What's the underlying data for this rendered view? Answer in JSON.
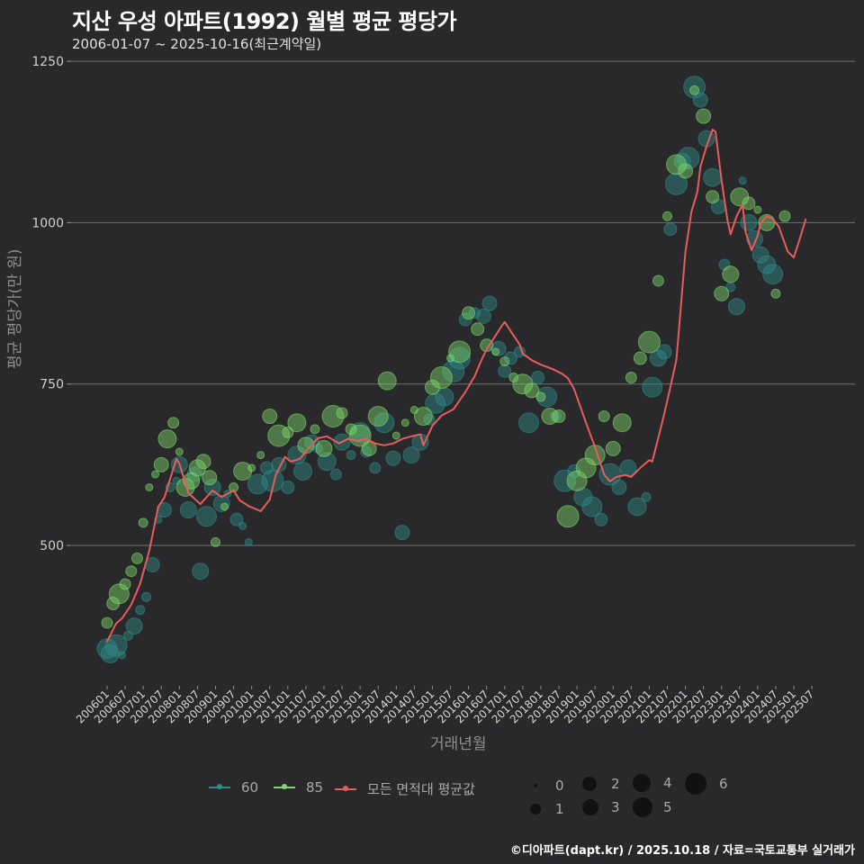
{
  "header": {
    "title": "지산 우성 아파트(1992) 월별 평균 평당가",
    "subtitle": "2006-01-07 ~ 2025-10-16(최근계약일)"
  },
  "axes": {
    "ylabel": "평균 평당가(만 원)",
    "xlabel": "거래년월"
  },
  "legend": {
    "series": [
      {
        "label": "60",
        "color": "#2f8a8a"
      },
      {
        "label": "85",
        "color": "#7ed86a"
      },
      {
        "label": "모든 면적대 평균값",
        "color": "#e85c5c"
      }
    ],
    "sizes": [
      {
        "label": "0",
        "r": 2
      },
      {
        "label": "1",
        "r": 6
      },
      {
        "label": "2",
        "r": 8
      },
      {
        "label": "3",
        "r": 10
      },
      {
        "label": "4",
        "r": 11
      },
      {
        "label": "5",
        "r": 12
      },
      {
        "label": "6",
        "r": 12.5
      }
    ]
  },
  "caption": "©디아파트(dapt.kr) / 2025.10.18 / 자료=국토교통부 실거래가",
  "chart_data": {
    "type": "scatter",
    "title": "지산 우성 아파트(1992) 월별 평균 평당가",
    "subtitle": "2006-01-07 ~ 2025-10-16(최근계약일)",
    "xlabel": "거래년월",
    "ylabel": "평균 평당가(만 원)",
    "ylim": [
      300,
      1250
    ],
    "yticks": [
      500,
      750,
      1000,
      1250
    ],
    "grid": true,
    "legend_position": "bottom",
    "xticks": [
      "200601",
      "200607",
      "200701",
      "200707",
      "200801",
      "200807",
      "200901",
      "200907",
      "201001",
      "201007",
      "201101",
      "201107",
      "201201",
      "201207",
      "201301",
      "201307",
      "201401",
      "201407",
      "201501",
      "201507",
      "201601",
      "201607",
      "201701",
      "201707",
      "201801",
      "201807",
      "201901",
      "201907",
      "202001",
      "202007",
      "202101",
      "202107",
      "202201",
      "202207",
      "202301",
      "202307",
      "202401",
      "202407",
      "202501",
      "202507"
    ],
    "series": [
      {
        "name": "모든 면적대 평균값",
        "type": "line",
        "color": "#e85c5c",
        "points": [
          [
            "200601",
            351
          ],
          [
            "200604",
            379
          ],
          [
            "200606",
            387
          ],
          [
            "200609",
            408
          ],
          [
            "200612",
            441
          ],
          [
            "200703",
            492
          ],
          [
            "200706",
            560
          ],
          [
            "200708",
            574
          ],
          [
            "200712",
            634
          ],
          [
            "200801",
            627
          ],
          [
            "200804",
            581
          ],
          [
            "200808",
            564
          ],
          [
            "200812",
            585
          ],
          [
            "200903",
            575
          ],
          [
            "200907",
            585
          ],
          [
            "200909",
            570
          ],
          [
            "200912",
            561
          ],
          [
            "201004",
            553
          ],
          [
            "201007",
            571
          ],
          [
            "201009",
            609
          ],
          [
            "201012",
            637
          ],
          [
            "201102",
            630
          ],
          [
            "201105",
            634
          ],
          [
            "201108",
            651
          ],
          [
            "201111",
            666
          ],
          [
            "201202",
            669
          ],
          [
            "201206",
            658
          ],
          [
            "201209",
            665
          ],
          [
            "201212",
            662
          ],
          [
            "201303",
            665
          ],
          [
            "201306",
            658
          ],
          [
            "201309",
            655
          ],
          [
            "201312",
            658
          ],
          [
            "201403",
            665
          ],
          [
            "201406",
            669
          ],
          [
            "201409",
            672
          ],
          [
            "201410",
            655
          ],
          [
            "201501",
            685
          ],
          [
            "201504",
            701
          ],
          [
            "201508",
            711
          ],
          [
            "201512",
            738
          ],
          [
            "201603",
            762
          ],
          [
            "201605",
            784
          ],
          [
            "201607",
            804
          ],
          [
            "201609",
            818
          ],
          [
            "201612",
            840
          ],
          [
            "201701",
            846
          ],
          [
            "201703",
            832
          ],
          [
            "201706",
            811
          ],
          [
            "201707",
            797
          ],
          [
            "201710",
            787
          ],
          [
            "201801",
            780
          ],
          [
            "201805",
            773
          ],
          [
            "201808",
            766
          ],
          [
            "201810",
            759
          ],
          [
            "201812",
            743
          ],
          [
            "201904",
            690
          ],
          [
            "201907",
            652
          ],
          [
            "201910",
            610
          ],
          [
            "201912",
            599
          ],
          [
            "202002",
            606
          ],
          [
            "202005",
            609
          ],
          [
            "202007",
            606
          ],
          [
            "202010",
            620
          ],
          [
            "202101",
            632
          ],
          [
            "202102",
            630
          ],
          [
            "202104",
            666
          ],
          [
            "202106",
            704
          ],
          [
            "202108",
            745
          ],
          [
            "202110",
            787
          ],
          [
            "202111",
            843
          ],
          [
            "202201",
            955
          ],
          [
            "202203",
            1017
          ],
          [
            "202205",
            1048
          ],
          [
            "202206",
            1087
          ],
          [
            "202208",
            1118
          ],
          [
            "202210",
            1144
          ],
          [
            "202211",
            1141
          ],
          [
            "202301",
            1066
          ],
          [
            "202303",
            1003
          ],
          [
            "202304",
            982
          ],
          [
            "202306",
            1010
          ],
          [
            "202308",
            1028
          ],
          [
            "202309",
            985
          ],
          [
            "202311",
            957
          ],
          [
            "202401",
            980
          ],
          [
            "202402",
            999
          ],
          [
            "202404",
            1010
          ],
          [
            "202406",
            1006
          ],
          [
            "202408",
            994
          ],
          [
            "202411",
            955
          ],
          [
            "202501",
            946
          ],
          [
            "202503",
            975
          ],
          [
            "202505",
            1006
          ]
        ]
      },
      {
        "name": "60",
        "type": "scatter",
        "color": "#2f8a8a",
        "points": [
          [
            "200601",
            340
          ],
          [
            "200602",
            332
          ],
          [
            "200604",
            345
          ],
          [
            "200606",
            330
          ],
          [
            "200608",
            360
          ],
          [
            "200610",
            375
          ],
          [
            "200612",
            400
          ],
          [
            "200702",
            420
          ],
          [
            "200704",
            470
          ],
          [
            "200706",
            540
          ],
          [
            "200708",
            555
          ],
          [
            "200710",
            590
          ],
          [
            "200712",
            600
          ],
          [
            "200801",
            625
          ],
          [
            "200804",
            555
          ],
          [
            "200806",
            610
          ],
          [
            "200808",
            460
          ],
          [
            "200810",
            545
          ],
          [
            "200812",
            590
          ],
          [
            "200903",
            565
          ],
          [
            "200905",
            580
          ],
          [
            "200908",
            540
          ],
          [
            "200910",
            530
          ],
          [
            "200912",
            505
          ],
          [
            "201003",
            595
          ],
          [
            "201006",
            620
          ],
          [
            "201008",
            600
          ],
          [
            "201010",
            625
          ],
          [
            "201101",
            590
          ],
          [
            "201104",
            640
          ],
          [
            "201106",
            615
          ],
          [
            "201109",
            660
          ],
          [
            "201111",
            650
          ],
          [
            "201202",
            630
          ],
          [
            "201205",
            610
          ],
          [
            "201207",
            660
          ],
          [
            "201210",
            640
          ],
          [
            "201301",
            675
          ],
          [
            "201303",
            645
          ],
          [
            "201306",
            620
          ],
          [
            "201309",
            690
          ],
          [
            "201312",
            635
          ],
          [
            "201403",
            520
          ],
          [
            "201406",
            640
          ],
          [
            "201409",
            660
          ],
          [
            "201412",
            695
          ],
          [
            "201502",
            720
          ],
          [
            "201505",
            730
          ],
          [
            "201508",
            770
          ],
          [
            "201510",
            790
          ],
          [
            "201512",
            850
          ],
          [
            "201603",
            860
          ],
          [
            "201606",
            855
          ],
          [
            "201608",
            875
          ],
          [
            "201611",
            805
          ],
          [
            "201701",
            770
          ],
          [
            "201703",
            790
          ],
          [
            "201706",
            800
          ],
          [
            "201709",
            690
          ],
          [
            "201712",
            760
          ],
          [
            "201803",
            730
          ],
          [
            "201806",
            700
          ],
          [
            "201809",
            600
          ],
          [
            "201812",
            615
          ],
          [
            "201903",
            575
          ],
          [
            "201906",
            560
          ],
          [
            "201909",
            540
          ],
          [
            "201912",
            610
          ],
          [
            "202003",
            590
          ],
          [
            "202006",
            620
          ],
          [
            "202009",
            560
          ],
          [
            "202012",
            575
          ],
          [
            "202102",
            745
          ],
          [
            "202104",
            790
          ],
          [
            "202106",
            800
          ],
          [
            "202108",
            990
          ],
          [
            "202110",
            1060
          ],
          [
            "202112",
            1095
          ],
          [
            "202202",
            1100
          ],
          [
            "202204",
            1210
          ],
          [
            "202206",
            1190
          ],
          [
            "202208",
            1130
          ],
          [
            "202210",
            1070
          ],
          [
            "202212",
            1025
          ],
          [
            "202302",
            935
          ],
          [
            "202304",
            900
          ],
          [
            "202306",
            870
          ],
          [
            "202308",
            1065
          ],
          [
            "202310",
            1000
          ],
          [
            "202312",
            975
          ],
          [
            "202402",
            950
          ],
          [
            "202404",
            935
          ],
          [
            "202406",
            920
          ]
        ]
      },
      {
        "name": "85",
        "type": "scatter",
        "color": "#7ed86a",
        "points": [
          [
            "200601",
            380
          ],
          [
            "200603",
            410
          ],
          [
            "200605",
            425
          ],
          [
            "200607",
            440
          ],
          [
            "200609",
            460
          ],
          [
            "200611",
            480
          ],
          [
            "200701",
            535
          ],
          [
            "200703",
            590
          ],
          [
            "200705",
            610
          ],
          [
            "200707",
            625
          ],
          [
            "200709",
            665
          ],
          [
            "200711",
            690
          ],
          [
            "200801",
            645
          ],
          [
            "200803",
            590
          ],
          [
            "200805",
            600
          ],
          [
            "200807",
            620
          ],
          [
            "200809",
            630
          ],
          [
            "200811",
            605
          ],
          [
            "200901",
            505
          ],
          [
            "200904",
            560
          ],
          [
            "200907",
            590
          ],
          [
            "200910",
            615
          ],
          [
            "201001",
            620
          ],
          [
            "201004",
            640
          ],
          [
            "201007",
            700
          ],
          [
            "201010",
            670
          ],
          [
            "201101",
            675
          ],
          [
            "201104",
            690
          ],
          [
            "201107",
            655
          ],
          [
            "201110",
            680
          ],
          [
            "201201",
            650
          ],
          [
            "201204",
            700
          ],
          [
            "201207",
            705
          ],
          [
            "201210",
            680
          ],
          [
            "201301",
            670
          ],
          [
            "201304",
            650
          ],
          [
            "201307",
            700
          ],
          [
            "201310",
            755
          ],
          [
            "201401",
            670
          ],
          [
            "201404",
            690
          ],
          [
            "201407",
            710
          ],
          [
            "201410",
            700
          ],
          [
            "201501",
            745
          ],
          [
            "201504",
            760
          ],
          [
            "201507",
            790
          ],
          [
            "201510",
            800
          ],
          [
            "201601",
            860
          ],
          [
            "201604",
            835
          ],
          [
            "201607",
            810
          ],
          [
            "201610",
            800
          ],
          [
            "201701",
            785
          ],
          [
            "201704",
            760
          ],
          [
            "201707",
            750
          ],
          [
            "201710",
            740
          ],
          [
            "201801",
            730
          ],
          [
            "201804",
            700
          ],
          [
            "201807",
            700
          ],
          [
            "201810",
            545
          ],
          [
            "201901",
            600
          ],
          [
            "201904",
            620
          ],
          [
            "201907",
            640
          ],
          [
            "201910",
            700
          ],
          [
            "202001",
            650
          ],
          [
            "202004",
            690
          ],
          [
            "202007",
            760
          ],
          [
            "202010",
            790
          ],
          [
            "202101",
            815
          ],
          [
            "202104",
            910
          ],
          [
            "202107",
            1010
          ],
          [
            "202110",
            1090
          ],
          [
            "202201",
            1080
          ],
          [
            "202204",
            1205
          ],
          [
            "202207",
            1165
          ],
          [
            "202210",
            1040
          ],
          [
            "202301",
            890
          ],
          [
            "202304",
            920
          ],
          [
            "202307",
            1040
          ],
          [
            "202310",
            1030
          ],
          [
            "202401",
            1020
          ],
          [
            "202404",
            1000
          ],
          [
            "202407",
            890
          ],
          [
            "202410",
            1010
          ]
        ]
      }
    ]
  }
}
